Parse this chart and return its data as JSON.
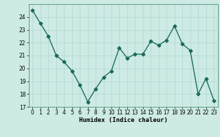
{
  "x": [
    0,
    1,
    2,
    3,
    4,
    5,
    6,
    7,
    8,
    9,
    10,
    11,
    12,
    13,
    14,
    15,
    16,
    17,
    18,
    19,
    20,
    21,
    22,
    23
  ],
  "y": [
    24.5,
    23.5,
    22.5,
    21.0,
    20.5,
    19.8,
    18.7,
    17.4,
    18.4,
    19.3,
    19.8,
    21.6,
    20.8,
    21.1,
    21.1,
    22.1,
    21.8,
    22.2,
    23.3,
    21.9,
    21.4,
    18.0,
    19.2,
    17.5
  ],
  "line_color": "#1a6b5a",
  "marker": "D",
  "markersize": 2.5,
  "linewidth": 1.0,
  "bg_color": "#cdeae4",
  "grid_color": "#b0d8d0",
  "xlabel": "Humidex (Indice chaleur)",
  "xlim": [
    -0.5,
    23.5
  ],
  "ylim": [
    17,
    25
  ],
  "yticks": [
    17,
    18,
    19,
    20,
    21,
    22,
    23,
    24
  ],
  "xticks": [
    0,
    1,
    2,
    3,
    4,
    5,
    6,
    7,
    8,
    9,
    10,
    11,
    12,
    13,
    14,
    15,
    16,
    17,
    18,
    19,
    20,
    21,
    22,
    23
  ],
  "tick_fontsize": 5.5,
  "xlabel_fontsize": 6.5
}
